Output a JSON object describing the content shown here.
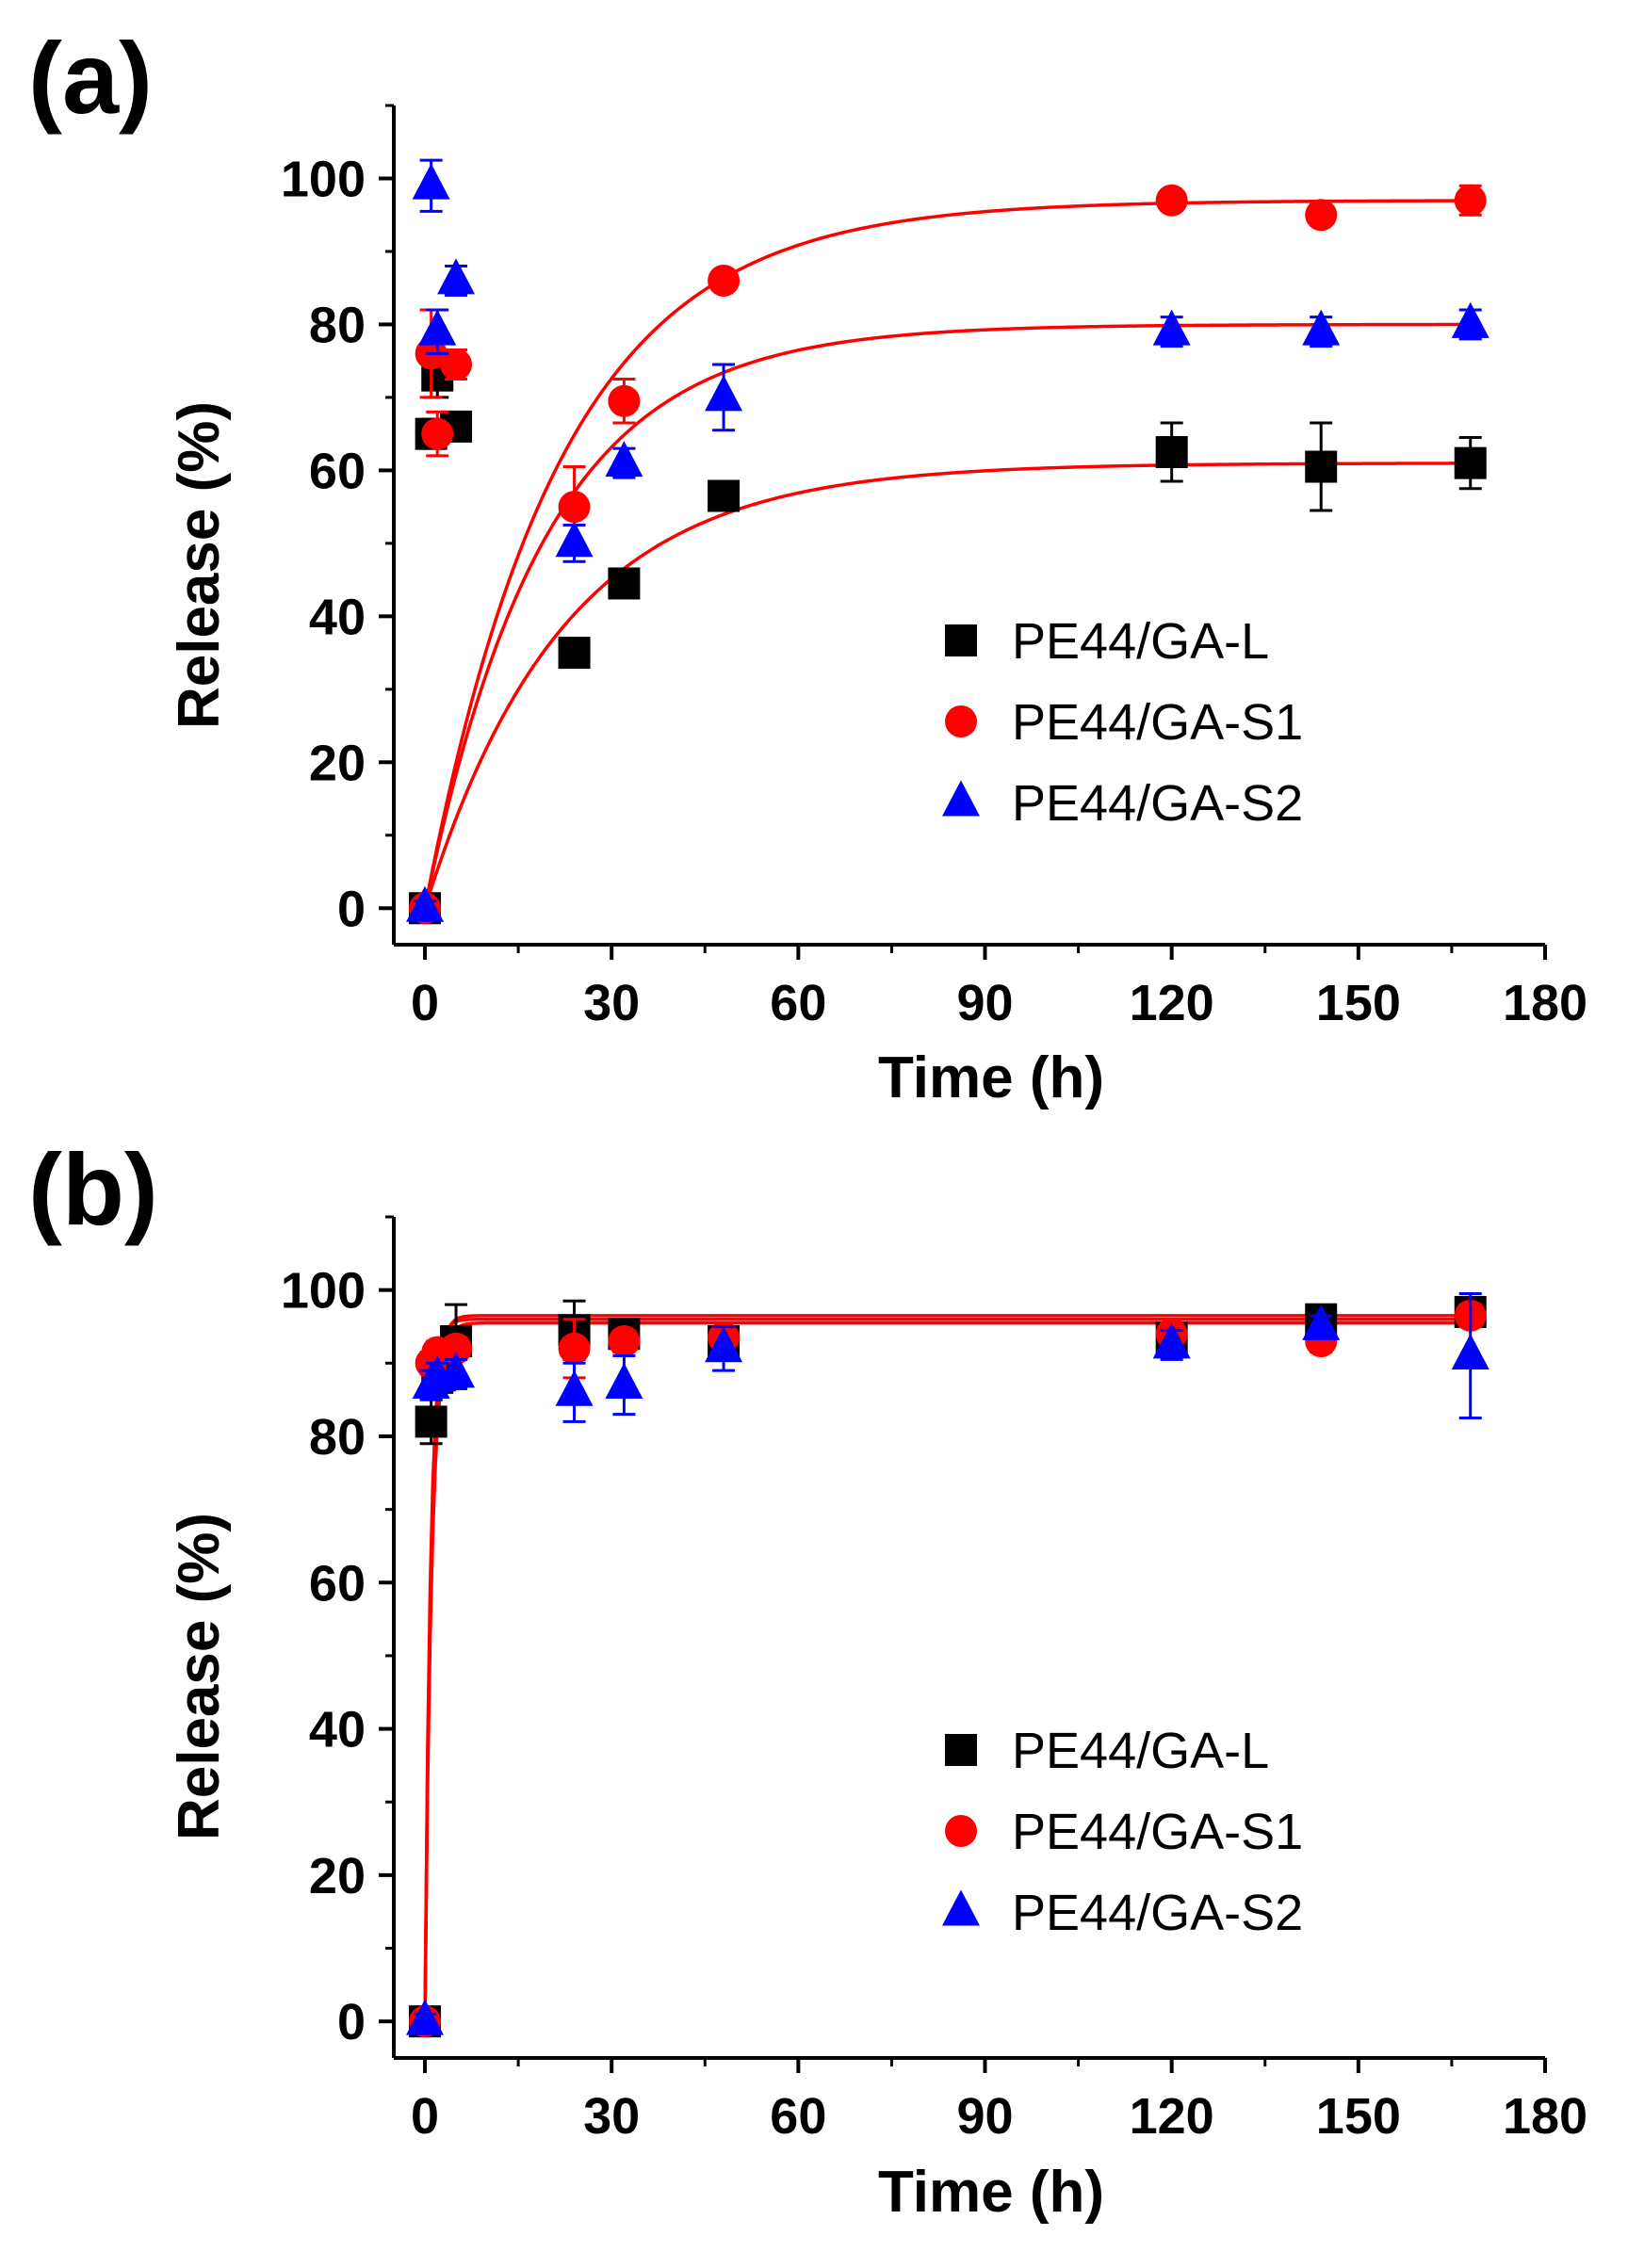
{
  "figure": {
    "panels": [
      "(a)",
      "(b)"
    ],
    "series_colors": {
      "PE44/GA-L": "#000000",
      "PE44/GA-S1": "#ff0000",
      "PE44/GA-S2": "#0000ff"
    },
    "fit_color": "#ff0000"
  },
  "chart_data": [
    {
      "panel": "(a)",
      "type": "scatter",
      "xlabel": "Time (h)",
      "ylabel": "Release (%)",
      "xlim": [
        -5,
        180
      ],
      "ylim": [
        -5,
        110
      ],
      "xticks": [
        0,
        30,
        60,
        90,
        120,
        150,
        180
      ],
      "yticks": [
        0,
        20,
        40,
        60,
        80,
        100
      ],
      "legend_position": "center-right",
      "series": [
        {
          "name": "PE44/GA-L",
          "marker": "square",
          "color": "#000000",
          "x": [
            0,
            1,
            2,
            5,
            24,
            32,
            48,
            120,
            144,
            168
          ],
          "y": [
            0,
            65,
            73,
            66,
            35,
            44.5,
            56.5,
            62.5,
            60.5,
            61
          ],
          "err": [
            1,
            2,
            3,
            1,
            1.5,
            1,
            1,
            4,
            6,
            3.5
          ]
        },
        {
          "name": "PE44/GA-S1",
          "marker": "circle",
          "color": "#ff0000",
          "x": [
            0,
            1,
            2,
            5,
            24,
            32,
            48,
            120,
            144,
            168
          ],
          "y": [
            0,
            76,
            65,
            74.5,
            55,
            69.5,
            86,
            97,
            95,
            97
          ],
          "err": [
            1,
            6,
            3,
            2,
            5.5,
            3,
            1,
            1,
            1,
            2
          ]
        },
        {
          "name": "PE44/GA-S2",
          "marker": "triangle",
          "color": "#0000ff",
          "x": [
            0,
            1,
            2,
            5,
            24,
            32,
            48,
            120,
            144,
            168
          ],
          "y": [
            0,
            99,
            79,
            86,
            50,
            61,
            70,
            79,
            79,
            80
          ],
          "err": [
            1,
            3.5,
            3,
            2,
            2.5,
            2,
            4.5,
            2,
            2,
            2
          ]
        }
      ],
      "fits": [
        {
          "series": "PE44/GA-L",
          "plateau": 61,
          "rate": 0.045
        },
        {
          "series": "PE44/GA-S1",
          "plateau": 97,
          "rate": 0.046
        },
        {
          "series": "PE44/GA-S2",
          "plateau": 80,
          "rate": 0.052
        }
      ]
    },
    {
      "panel": "(b)",
      "type": "scatter",
      "xlabel": "Time (h)",
      "ylabel": "Release (%)",
      "xlim": [
        -5,
        180
      ],
      "ylim": [
        -5,
        110
      ],
      "xticks": [
        0,
        30,
        60,
        90,
        120,
        150,
        180
      ],
      "yticks": [
        0,
        20,
        40,
        60,
        80,
        100
      ],
      "legend_position": "center-right",
      "series": [
        {
          "name": "PE44/GA-L",
          "marker": "square",
          "color": "#000000",
          "x": [
            0,
            1,
            2,
            5,
            24,
            32,
            48,
            120,
            144,
            168
          ],
          "y": [
            0,
            82,
            88,
            93,
            94.5,
            94,
            93,
            93.5,
            96,
            97
          ],
          "err": [
            1,
            3,
            2,
            5,
            4,
            2,
            2,
            2,
            1.5,
            1.5
          ]
        },
        {
          "name": "PE44/GA-S1",
          "marker": "circle",
          "color": "#ff0000",
          "x": [
            0,
            1,
            2,
            5,
            24,
            32,
            48,
            120,
            144,
            168
          ],
          "y": [
            0,
            90,
            91.5,
            92,
            92,
            93,
            93.5,
            94,
            93,
            96.5
          ],
          "err": [
            1,
            1.5,
            1.5,
            1.5,
            4,
            1.5,
            1.5,
            1.5,
            1.5,
            1.5
          ]
        },
        {
          "name": "PE44/GA-S2",
          "marker": "triangle",
          "color": "#0000ff",
          "x": [
            0,
            1,
            2,
            5,
            24,
            32,
            48,
            120,
            144,
            168
          ],
          "y": [
            0,
            87,
            88,
            88.5,
            86,
            87,
            92,
            92.5,
            95,
            91
          ],
          "err": [
            1,
            2,
            2,
            2,
            4,
            4,
            3,
            2,
            1.5,
            8.5
          ]
        }
      ],
      "fits": [
        {
          "series": "PE44/GA-L",
          "plateau": 96.5,
          "rate": 1.05
        },
        {
          "series": "PE44/GA-S1",
          "plateau": 96.0,
          "rate": 1.15
        },
        {
          "series": "PE44/GA-S2",
          "plateau": 95.5,
          "rate": 0.95
        }
      ]
    }
  ]
}
